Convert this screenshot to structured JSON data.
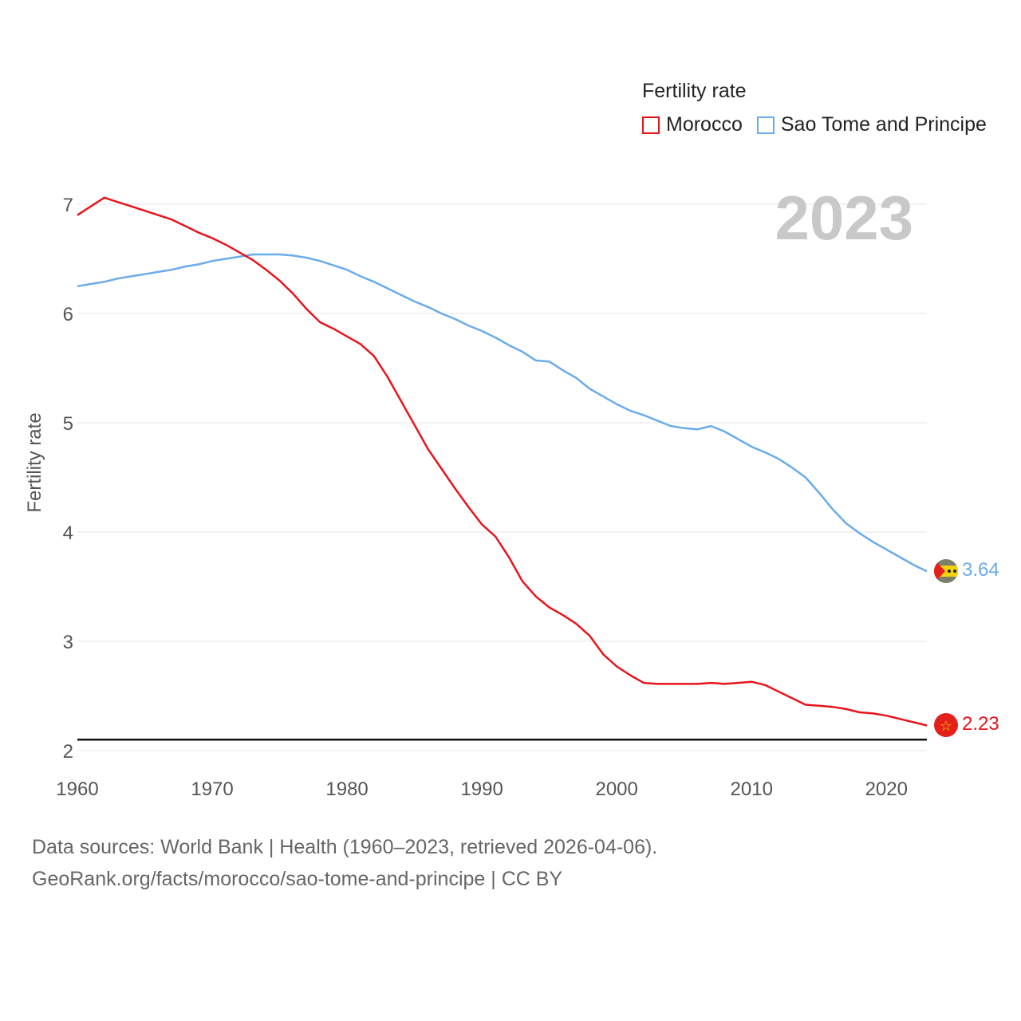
{
  "legend": {
    "title": "Fertility rate",
    "items": [
      {
        "label": "Morocco",
        "color": "#e8141c"
      },
      {
        "label": "Sao Tome and Principe",
        "color": "#6aabea"
      }
    ]
  },
  "year_label": "2023",
  "footer": {
    "line1": "Data sources: World Bank | Health (1960–2023, retrieved 2026-04-06).",
    "line2": "GeoRank.org/facts/morocco/sao-tome-and-principe | CC BY"
  },
  "end_labels": {
    "morocco": "2.23",
    "stp": "3.64"
  },
  "chart_data": {
    "type": "line",
    "title": "Fertility rate",
    "xlabel": "",
    "ylabel": "Fertility rate",
    "xlim": [
      1960,
      2023
    ],
    "ylim": [
      2,
      7
    ],
    "x_ticks": [
      "1960",
      "1970",
      "1980",
      "1990",
      "2000",
      "2010",
      "2020"
    ],
    "y_ticks": [
      "2",
      "3",
      "4",
      "5",
      "6",
      "7"
    ],
    "reference_line": 2.1,
    "x": [
      1960,
      1961,
      1962,
      1963,
      1964,
      1965,
      1966,
      1967,
      1968,
      1969,
      1970,
      1971,
      1972,
      1973,
      1974,
      1975,
      1976,
      1977,
      1978,
      1979,
      1980,
      1981,
      1982,
      1983,
      1984,
      1985,
      1986,
      1987,
      1988,
      1989,
      1990,
      1991,
      1992,
      1993,
      1994,
      1995,
      1996,
      1997,
      1998,
      1999,
      2000,
      2001,
      2002,
      2003,
      2004,
      2005,
      2006,
      2007,
      2008,
      2009,
      2010,
      2011,
      2012,
      2013,
      2014,
      2015,
      2016,
      2017,
      2018,
      2019,
      2020,
      2021,
      2022,
      2023
    ],
    "series": [
      {
        "name": "Morocco",
        "color": "#e8141c",
        "values": [
          6.9,
          6.98,
          7.06,
          7.02,
          6.98,
          6.94,
          6.9,
          6.86,
          6.8,
          6.74,
          6.69,
          6.63,
          6.56,
          6.49,
          6.4,
          6.3,
          6.18,
          6.04,
          5.92,
          5.86,
          5.79,
          5.72,
          5.61,
          5.42,
          5.2,
          4.98,
          4.76,
          4.58,
          4.4,
          4.23,
          4.07,
          3.96,
          3.77,
          3.55,
          3.41,
          3.31,
          3.24,
          3.16,
          3.05,
          2.88,
          2.77,
          2.69,
          2.62,
          2.61,
          2.61,
          2.61,
          2.61,
          2.62,
          2.61,
          2.62,
          2.63,
          2.6,
          2.54,
          2.48,
          2.42,
          2.41,
          2.4,
          2.38,
          2.35,
          2.34,
          2.32,
          2.29,
          2.26,
          2.23
        ]
      },
      {
        "name": "Sao Tome and Principe",
        "color": "#6aabea",
        "values": [
          6.25,
          6.27,
          6.29,
          6.32,
          6.34,
          6.36,
          6.38,
          6.4,
          6.43,
          6.45,
          6.48,
          6.5,
          6.52,
          6.54,
          6.54,
          6.54,
          6.53,
          6.51,
          6.48,
          6.44,
          6.4,
          6.34,
          6.29,
          6.23,
          6.17,
          6.11,
          6.06,
          6.0,
          5.95,
          5.89,
          5.84,
          5.78,
          5.71,
          5.65,
          5.57,
          5.56,
          5.48,
          5.41,
          5.31,
          5.24,
          5.17,
          5.11,
          5.07,
          5.02,
          4.97,
          4.95,
          4.94,
          4.97,
          4.92,
          4.85,
          4.78,
          4.73,
          4.67,
          4.59,
          4.5,
          4.36,
          4.21,
          4.08,
          3.99,
          3.91,
          3.84,
          3.77,
          3.7,
          3.64
        ]
      }
    ]
  }
}
